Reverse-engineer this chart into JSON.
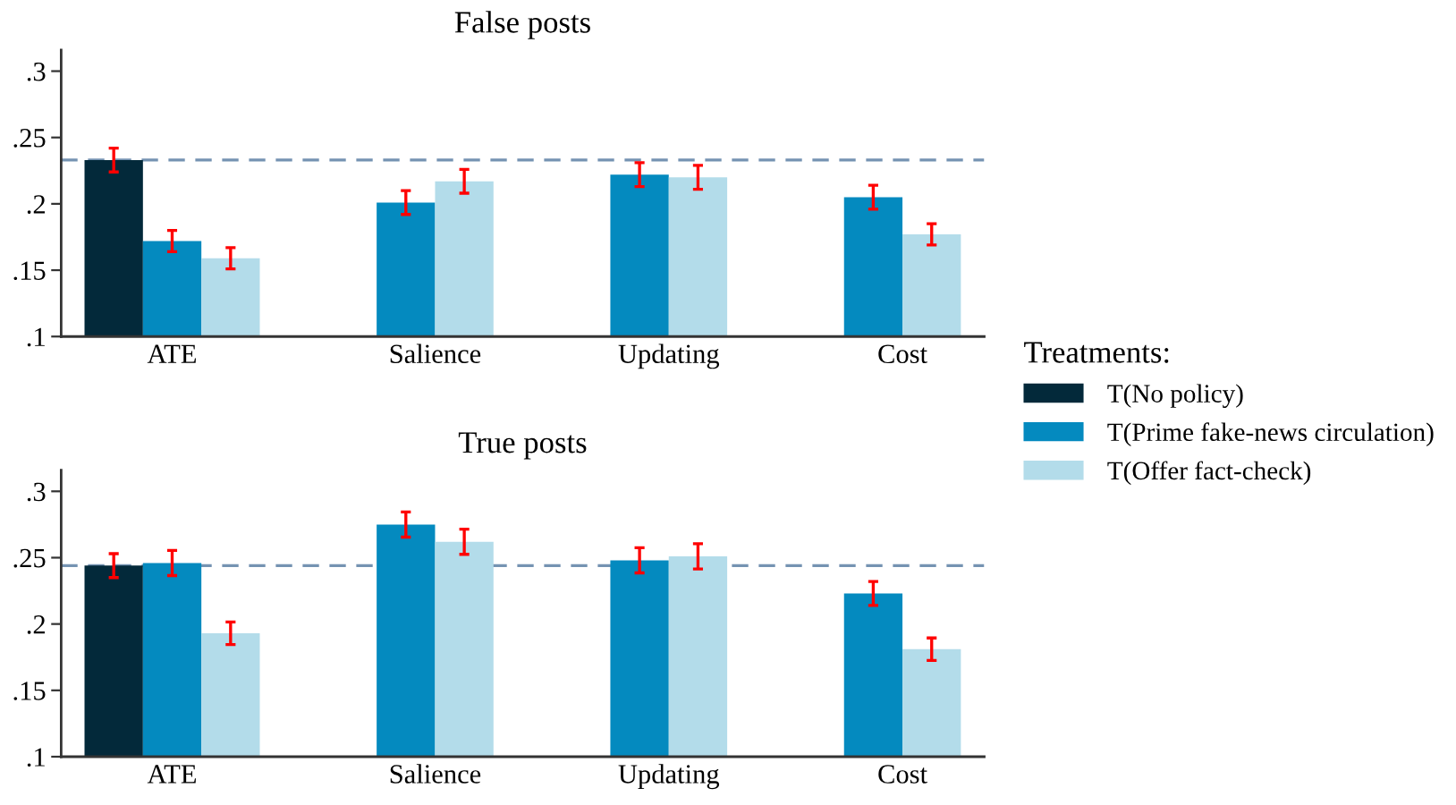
{
  "chart_data": [
    {
      "type": "bar",
      "title": "False posts",
      "categories": [
        "ATE",
        "Salience",
        "Updating",
        "Cost"
      ],
      "series": [
        {
          "name": "T(No policy)",
          "color": "#03293a",
          "values": [
            0.233,
            null,
            null,
            null
          ],
          "errors": [
            0.009,
            null,
            null,
            null
          ]
        },
        {
          "name": "T(Prime fake-news circulation)",
          "color": "#048abf",
          "values": [
            0.172,
            0.201,
            0.222,
            0.205
          ],
          "errors": [
            0.008,
            0.009,
            0.009,
            0.009
          ]
        },
        {
          "name": "T(Offer fact-check)",
          "color": "#b3dcea",
          "values": [
            0.159,
            0.217,
            0.22,
            0.177
          ],
          "errors": [
            0.008,
            0.009,
            0.009,
            0.008
          ]
        }
      ],
      "ylim": [
        0.1,
        0.316
      ],
      "yticks": [
        {
          "value": 0.1,
          "label": ".1"
        },
        {
          "value": 0.15,
          "label": ".15"
        },
        {
          "value": 0.2,
          "label": ".2"
        },
        {
          "value": 0.25,
          "label": ".25"
        },
        {
          "value": 0.3,
          "label": ".3"
        }
      ],
      "ref_lines": [
        {
          "axis": "y",
          "value": 0.233,
          "color": "#7593b2",
          "line_style": "dashed"
        }
      ],
      "legend": "right",
      "legend_title": "Treatments:"
    },
    {
      "type": "bar",
      "title": "True posts",
      "categories": [
        "ATE",
        "Salience",
        "Updating",
        "Cost"
      ],
      "series": [
        {
          "name": "T(No policy)",
          "color": "#03293a",
          "values": [
            0.244,
            null,
            null,
            null
          ],
          "errors": [
            0.009,
            null,
            null,
            null
          ]
        },
        {
          "name": "T(Prime fake-news circulation)",
          "color": "#048abf",
          "values": [
            0.246,
            0.275,
            0.248,
            0.223
          ],
          "errors": [
            0.0095,
            0.0095,
            0.0095,
            0.009
          ]
        },
        {
          "name": "T(Offer fact-check)",
          "color": "#b3dcea",
          "values": [
            0.193,
            0.262,
            0.251,
            0.181
          ],
          "errors": [
            0.0085,
            0.0095,
            0.0095,
            0.0085
          ]
        }
      ],
      "ylim": [
        0.1,
        0.316
      ],
      "yticks": [
        {
          "value": 0.1,
          "label": ".1"
        },
        {
          "value": 0.15,
          "label": ".15"
        },
        {
          "value": 0.2,
          "label": ".2"
        },
        {
          "value": 0.25,
          "label": ".25"
        },
        {
          "value": 0.3,
          "label": ".3"
        }
      ],
      "ref_lines": [
        {
          "axis": "y",
          "value": 0.244,
          "color": "#7593b2",
          "line_style": "dashed"
        }
      ]
    }
  ]
}
